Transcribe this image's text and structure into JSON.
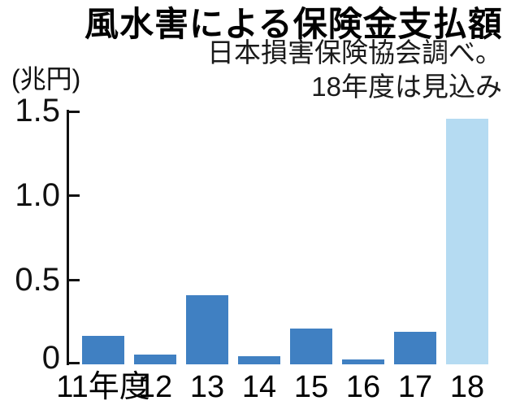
{
  "title": "風水害による保険金支払額",
  "subtitle_line1": "日本損害保険協会調べ。",
  "subtitle_line2": "18年度は見込み",
  "y_axis": {
    "unit": "(兆円)",
    "tick_labels": [
      "1.5",
      "1.0",
      "0.5",
      "0"
    ],
    "tick_values": [
      1.5,
      1.0,
      0.5,
      0
    ]
  },
  "chart_data": {
    "type": "bar",
    "title": "風水害による保険金支払額",
    "subtitle": "日本損害保険協会調べ。18年度は見込み",
    "categories": [
      "11年度",
      "12",
      "13",
      "14",
      "15",
      "16",
      "17",
      "18"
    ],
    "values": [
      0.17,
      0.06,
      0.41,
      0.05,
      0.21,
      0.03,
      0.19,
      1.45
    ],
    "estimate_flags": [
      false,
      false,
      false,
      false,
      false,
      false,
      false,
      true
    ],
    "estimate_category": "18",
    "xlabel": "",
    "ylabel": "(兆円)",
    "ylim": [
      0,
      1.5
    ],
    "grid": false,
    "legend": "none"
  },
  "colors": {
    "bar": "#4080c2",
    "estimate_bar": "#b5dbf2",
    "axis": "#111111",
    "text": "#000000"
  }
}
